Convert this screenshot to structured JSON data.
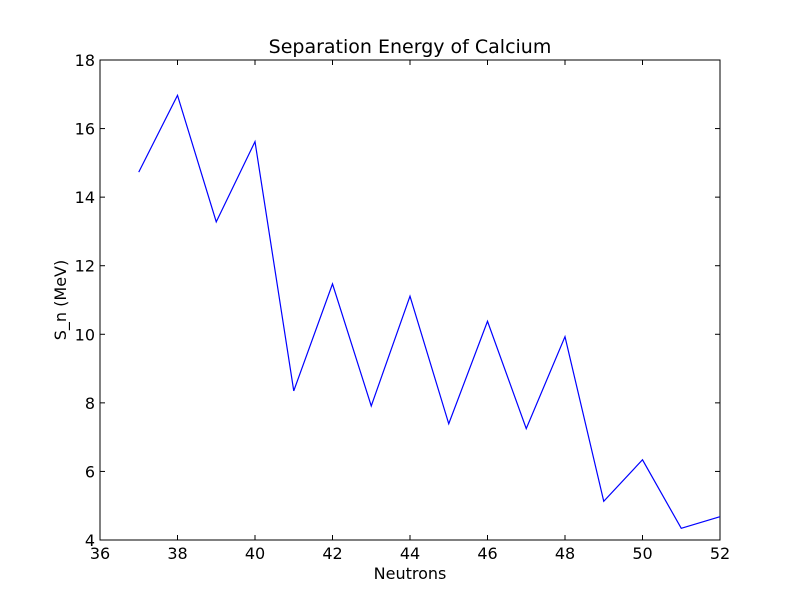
{
  "chart_data": {
    "type": "line",
    "title": "Separation Energy of Calcium",
    "xlabel": "Neutrons",
    "ylabel": "S_n (MeV)",
    "xlim": [
      36,
      52
    ],
    "ylim": [
      4,
      18
    ],
    "xticks": [
      "36",
      "38",
      "40",
      "42",
      "44",
      "46",
      "48",
      "50",
      "52"
    ],
    "yticks": [
      "4",
      "6",
      "8",
      "10",
      "12",
      "14",
      "16",
      "18"
    ],
    "grid": false,
    "line_color": "#0000ff",
    "series": [
      {
        "x": [
          37,
          38,
          39,
          40,
          41,
          42,
          43,
          44,
          45,
          46,
          47,
          48,
          49,
          50,
          51,
          52
        ],
        "y": [
          14.73,
          16.97,
          13.28,
          15.62,
          8.35,
          11.47,
          7.91,
          11.11,
          7.39,
          10.38,
          7.25,
          9.93,
          5.13,
          6.34,
          4.34,
          4.68
        ]
      }
    ]
  }
}
